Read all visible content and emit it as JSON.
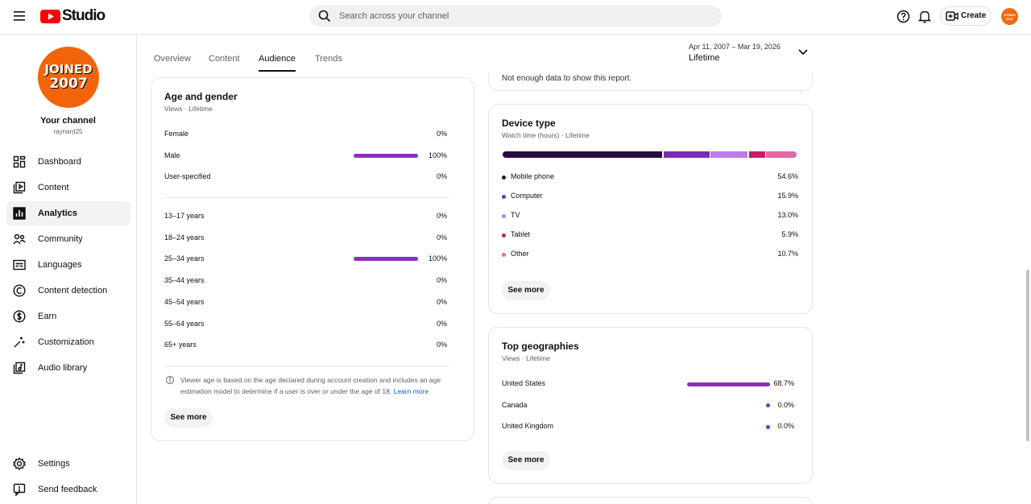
{
  "header": {
    "logo": "Studio",
    "search_placeholder": "Search across your channel",
    "create": "Create"
  },
  "badge": {
    "line1": "JOINED",
    "line2": "2007"
  },
  "sidebar": {
    "channel_title": "Your channel",
    "handle": "raynard25",
    "nav": [
      "Dashboard",
      "Content",
      "Analytics",
      "Community",
      "Languages",
      "Content detection",
      "Earn",
      "Customization",
      "Audio library"
    ],
    "bottom": [
      "Settings",
      "Send feedback"
    ]
  },
  "tabs": [
    "Overview",
    "Content",
    "Audience",
    "Trends"
  ],
  "date_range": {
    "range": "Apr 11, 2007 – Mar 19, 2026",
    "label": "Lifetime"
  },
  "previous_card": {
    "text": "Not enough data to show this report."
  },
  "age_gender": {
    "title": "Age and gender",
    "subtitle": "Views · Lifetime",
    "gender": [
      {
        "label": "Female",
        "value": 0,
        "value_label": "0%"
      },
      {
        "label": "Male",
        "value": 100,
        "value_label": "100%"
      },
      {
        "label": "User-specified",
        "value": 0,
        "value_label": "0%"
      }
    ],
    "age": [
      {
        "label": "13–17 years",
        "value": 0,
        "value_label": "0%"
      },
      {
        "label": "18–24 years",
        "value": 0,
        "value_label": "0%"
      },
      {
        "label": "25–34 years",
        "value": 100,
        "value_label": "100%"
      },
      {
        "label": "35–44 years",
        "value": 0,
        "value_label": "0%"
      },
      {
        "label": "45–54 years",
        "value": 0,
        "value_label": "0%"
      },
      {
        "label": "55–64 years",
        "value": 0,
        "value_label": "0%"
      },
      {
        "label": "65+ years",
        "value": 0,
        "value_label": "0%"
      }
    ],
    "bar_color": "#8c2fc0",
    "note": "Viewer age is based on the age declared during account creation and includes an age estimation model to determine if a user is over or under the age of 18.",
    "link": "Learn more",
    "button": "See more"
  },
  "device_type": {
    "title": "Device type",
    "subtitle": "Watch time (hours) · Lifetime",
    "items": [
      {
        "label": "Mobile phone",
        "value": 54.6,
        "value_label": "54.6%",
        "color": "#2a0b40"
      },
      {
        "label": "Computer",
        "value": 15.9,
        "value_label": "15.9%",
        "color": "#7b2db2"
      },
      {
        "label": "TV",
        "value": 13.0,
        "value_label": "13.0%",
        "color": "#c07ce8"
      },
      {
        "label": "Tablet",
        "value": 5.9,
        "value_label": "5.9%",
        "color": "#c81c6a"
      },
      {
        "label": "Other",
        "value": 10.7,
        "value_label": "10.7%",
        "color": "#e06aa6"
      }
    ],
    "button": "See more"
  },
  "top_geographies": {
    "title": "Top geographies",
    "subtitle": "Views · Lifetime",
    "items": [
      {
        "label": "United States",
        "value": 68.7,
        "value_label": "68.7%"
      },
      {
        "label": "Canada",
        "value": 0.0,
        "value_label": "0.0%"
      },
      {
        "label": "United Kingdom",
        "value": 0.0,
        "value_label": "0.0%"
      }
    ],
    "bar_color": "#8c2fc0",
    "button": "See more"
  }
}
